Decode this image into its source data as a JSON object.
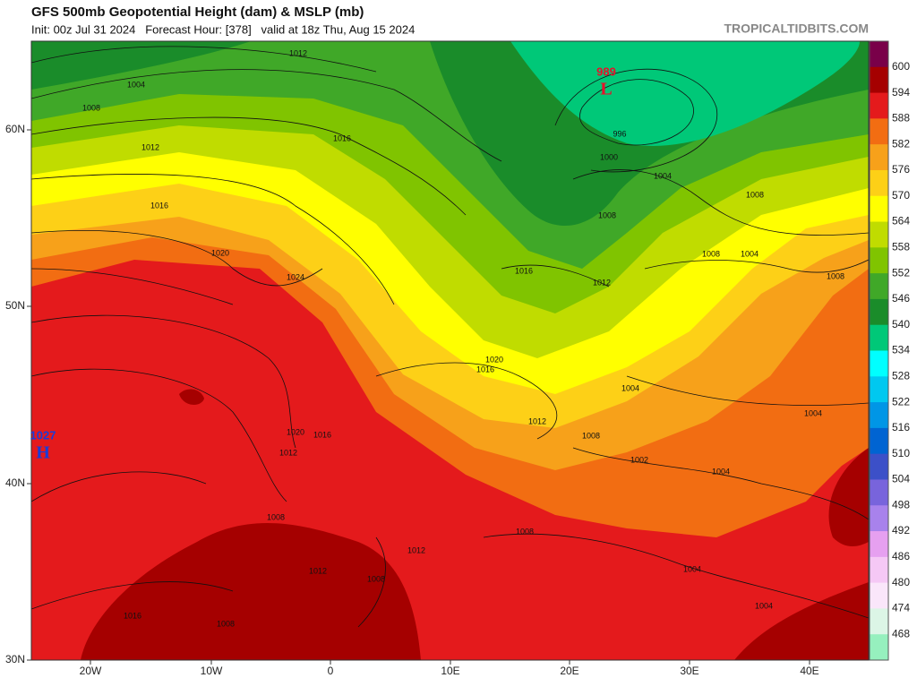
{
  "header": {
    "title": "GFS 500mb Geopotential Height (dam) & MSLP (mb)",
    "subtitle": "Init: 00z Jul 31 2024   Forecast Hour: [378]   valid at 18z Thu, Aug 15 2024",
    "source": "TROPICALTIDBITS.COM"
  },
  "map": {
    "lat_labels": [
      "60N",
      "50N",
      "40N",
      "30N"
    ],
    "lon_labels": [
      "20W",
      "10W",
      "0",
      "10E",
      "20E",
      "30E",
      "40E"
    ],
    "pressure_centers": [
      {
        "value": "1027",
        "letter": "H"
      },
      {
        "value": "989",
        "letter": "L"
      }
    ],
    "isobar_labels": [
      "1012",
      "1004",
      "1008",
      "1012",
      "1016",
      "1016",
      "1020",
      "1024",
      "1016",
      "1012",
      "1008",
      "1004",
      "1000",
      "996",
      "1008",
      "1008",
      "1004",
      "1008",
      "1020",
      "1016",
      "1004",
      "1004",
      "1012",
      "1008",
      "1002",
      "1004",
      "1020",
      "1016",
      "1012",
      "1008",
      "1008",
      "1012",
      "1012",
      "1008",
      "1004",
      "1004",
      "1016",
      "1008"
    ]
  },
  "colorbar": {
    "labels": [
      "600",
      "594",
      "588",
      "582",
      "576",
      "570",
      "564",
      "558",
      "552",
      "546",
      "540",
      "534",
      "528",
      "522",
      "516",
      "510",
      "504",
      "498",
      "492",
      "486",
      "480",
      "474",
      "468"
    ],
    "colors": [
      "#790049",
      "#a50000",
      "#e41a1c",
      "#f26d12",
      "#f7a11a",
      "#fdd017",
      "#ffff00",
      "#c0dc00",
      "#80c400",
      "#40a828",
      "#1a8c2a",
      "#00c878",
      "#00ffff",
      "#00c8f0",
      "#0096e6",
      "#0064d2",
      "#3c50c8",
      "#7864dc",
      "#a882ec",
      "#e6a0f0",
      "#f5c8f5",
      "#fae6fa",
      "#dcf5e6",
      "#96f0be"
    ]
  }
}
